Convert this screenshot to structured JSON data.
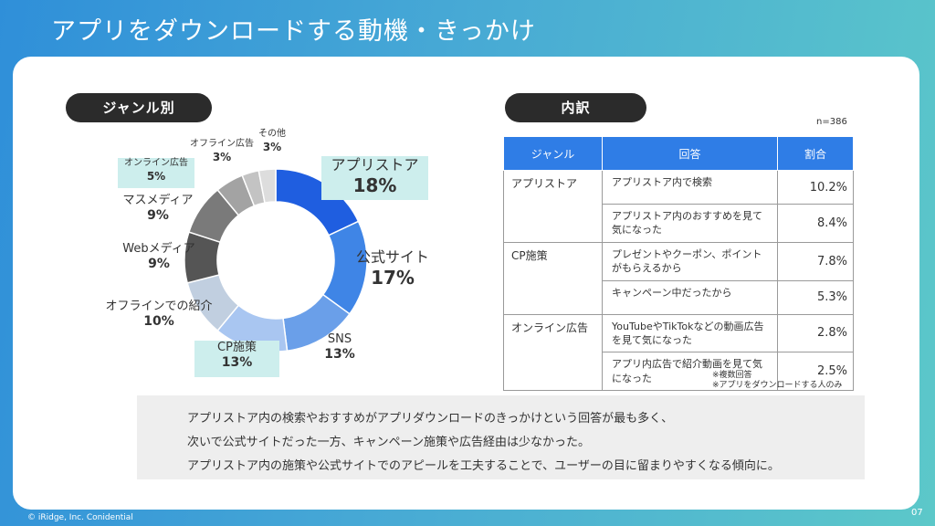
{
  "header": {
    "title": "アプリをダウンロードする動機・きっかけ"
  },
  "left_panel": {
    "pill": "ジャンル別"
  },
  "right_panel": {
    "pill": "内訳",
    "sample_size": "n=386"
  },
  "chart_data": {
    "type": "pie",
    "donut": true,
    "start": "12 o'clock, clockwise",
    "categories": [
      "アプリストア",
      "公式サイト",
      "SNS",
      "CP施策",
      "オフラインでの紹介",
      "Webメディア",
      "マスメディア",
      "オンライン広告",
      "オフライン広告",
      "その他"
    ],
    "value_labels": [
      "18%",
      "17%",
      "13%",
      "13%",
      "10%",
      "9%",
      "9%",
      "5%",
      "3%",
      "3%"
    ],
    "values": [
      18,
      17,
      13,
      13,
      10,
      9,
      9,
      5,
      3,
      3
    ],
    "colors": [
      "#1f5ee0",
      "#3f85e6",
      "#6a9fe9",
      "#a9c6f1",
      "#c1cfe0",
      "#555555",
      "#7a7a7a",
      "#a3a3a3",
      "#c3c3c3",
      "#dddddd"
    ],
    "highlighted": [
      "アプリストア",
      "CP施策",
      "オンライン広告"
    ]
  },
  "table": {
    "headers": [
      "ジャンル",
      "回答",
      "割合"
    ],
    "groups": [
      {
        "genre": "アプリストア",
        "rows": [
          {
            "answer": "アプリストア内で検索",
            "pct": "10.2%"
          },
          {
            "answer": "アプリストア内のおすすめを見て気になった",
            "pct": "8.4%"
          }
        ]
      },
      {
        "genre": "CP施策",
        "rows": [
          {
            "answer": "プレゼントやクーポン、ポイントがもらえるから",
            "pct": "7.8%"
          },
          {
            "answer": "キャンペーン中だったから",
            "pct": "5.3%"
          }
        ]
      },
      {
        "genre": "オンライン広告",
        "rows": [
          {
            "answer": "YouTubeやTikTokなどの動画広告を見て気になった",
            "pct": "2.8%"
          },
          {
            "answer": "アプリ内広告で紹介動画を見て気になった",
            "pct": "2.5%"
          }
        ]
      }
    ]
  },
  "notes": [
    "※複数回答",
    "※アプリをダウンロードする人のみ"
  ],
  "summary": {
    "lines": [
      "アプリストア内の検索やおすすめがアプリダウンロードのきっかけという回答が最も多く、",
      "次いで公式サイトだった一方、キャンペーン施策や広告経由は少なかった。",
      "アプリストア内の施策や公式サイトでのアピールを工夫することで、ユーザーの目に留まりやすくなる傾向に。"
    ]
  },
  "footer": {
    "copyright": "© iRidge, Inc. Conidential",
    "page": "07"
  }
}
